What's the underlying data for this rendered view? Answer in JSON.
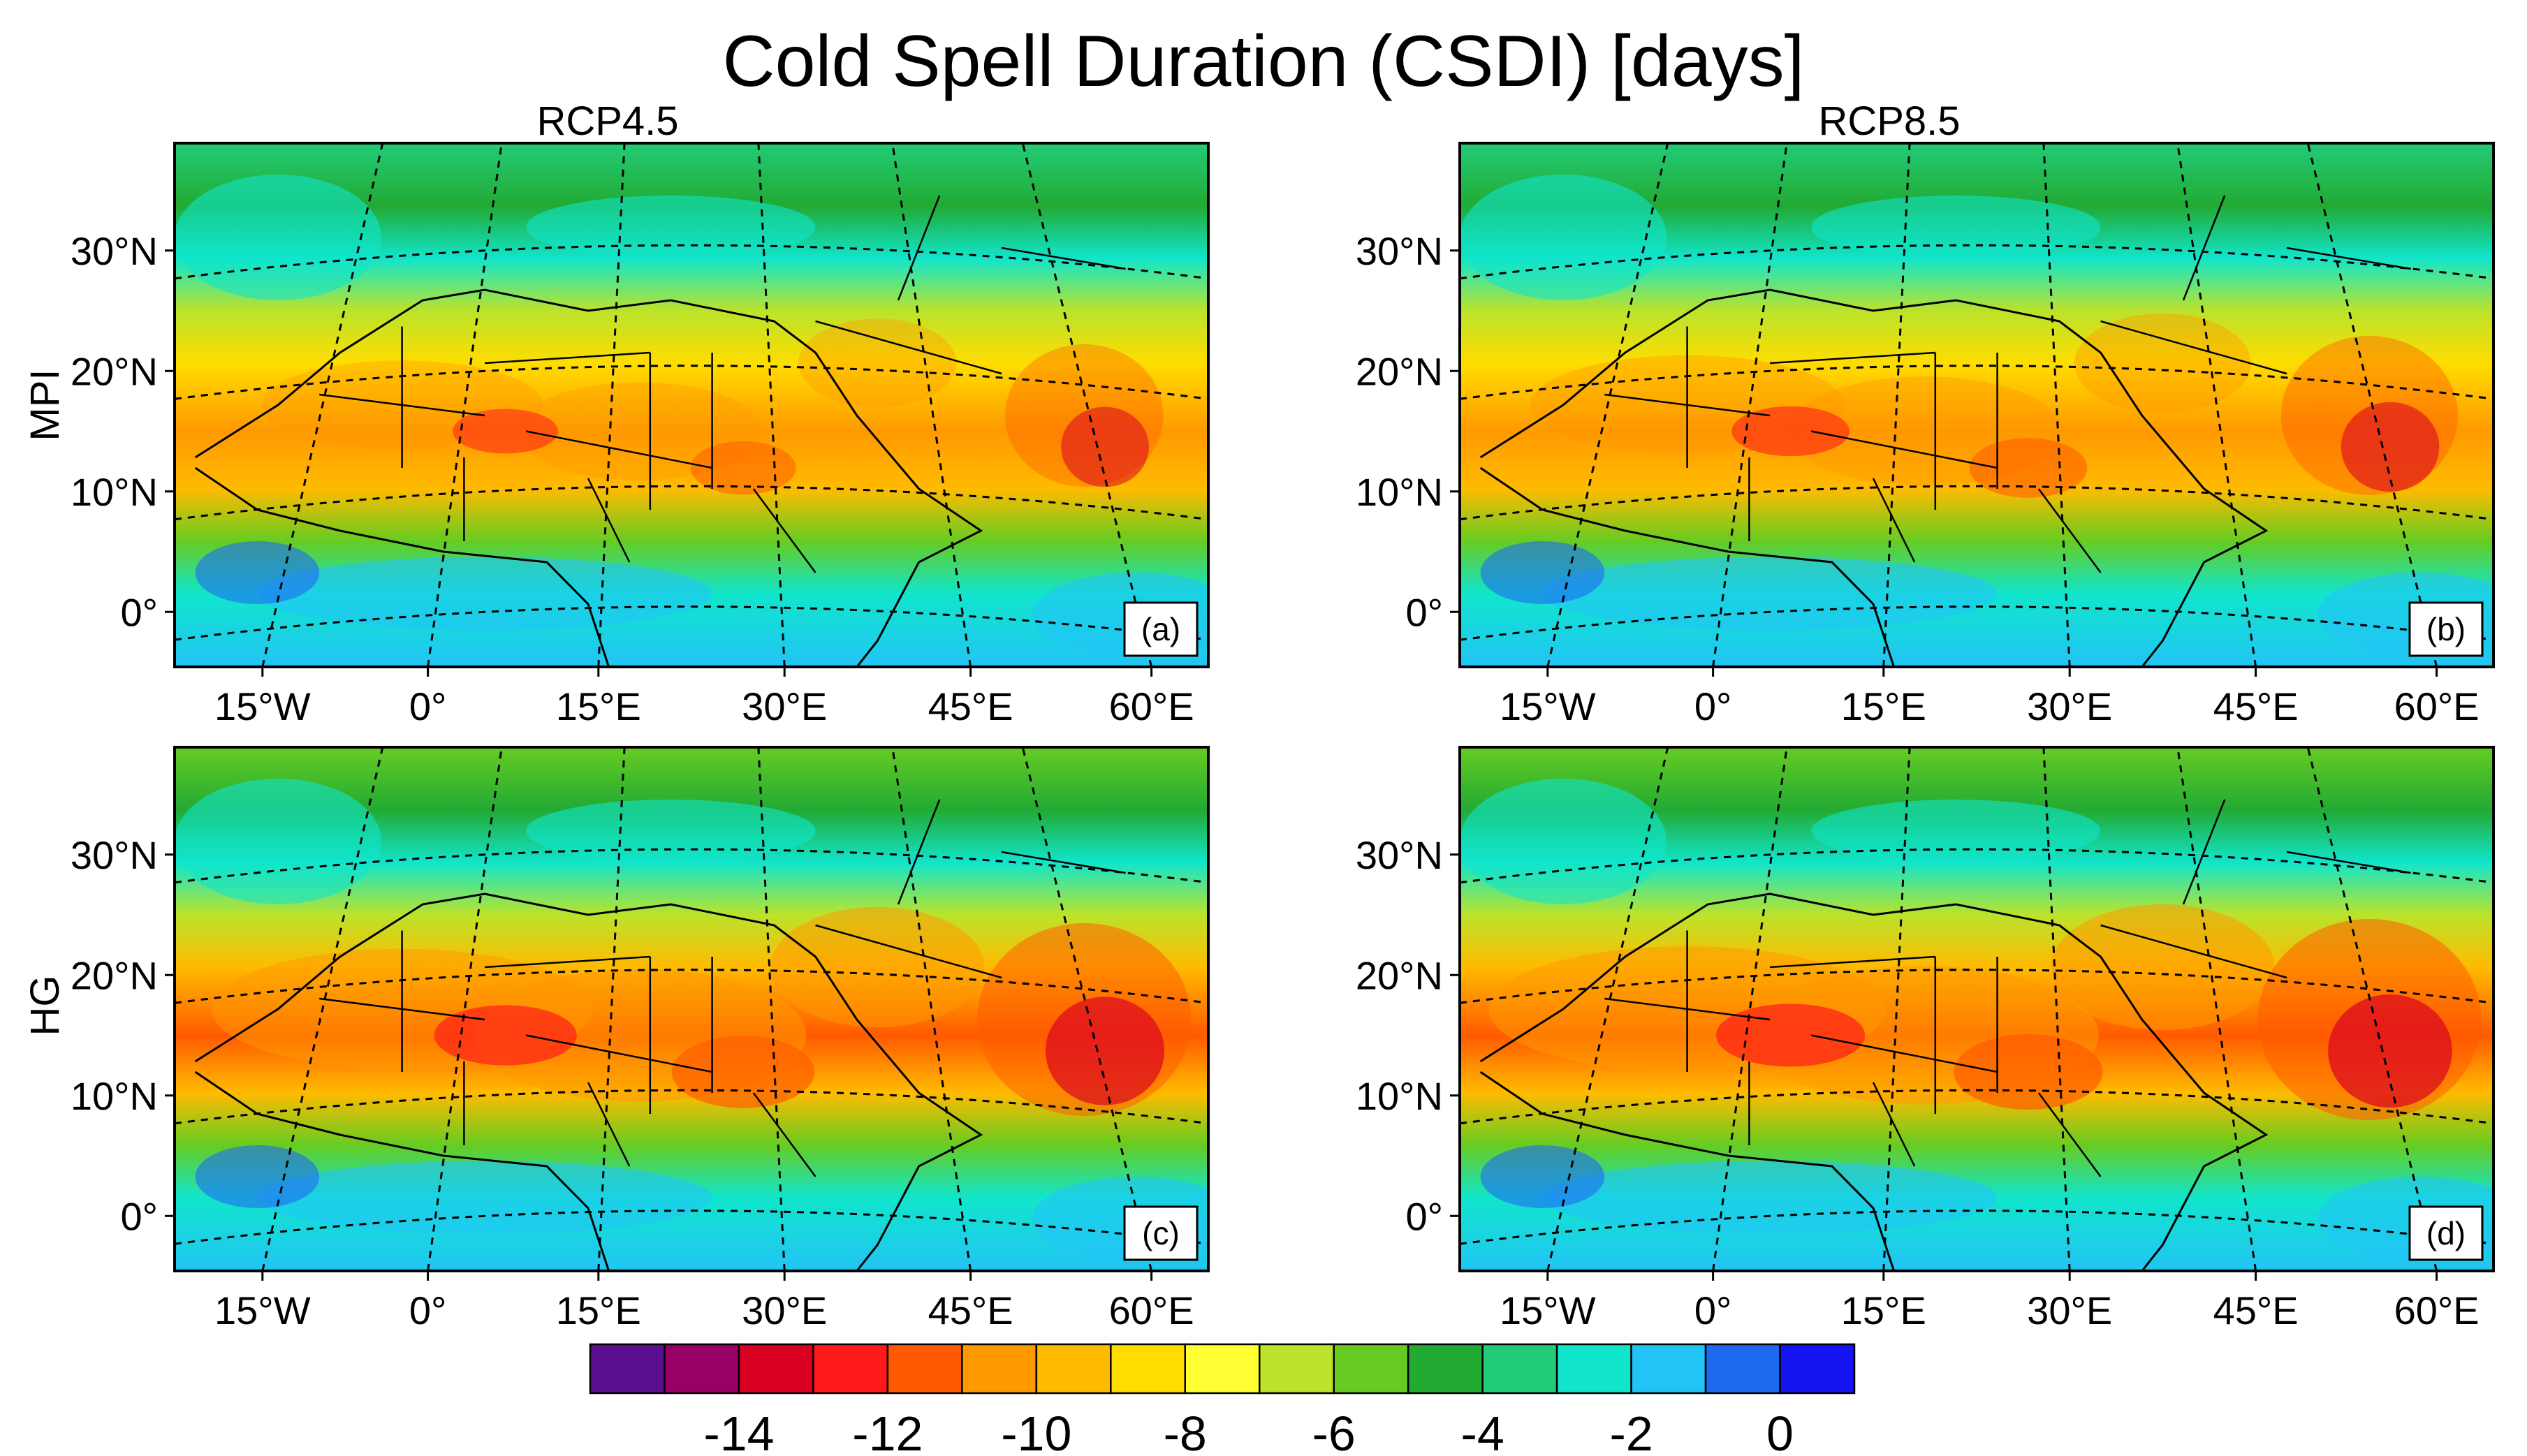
{
  "chart_data": {
    "type": "heatmap",
    "title": "Cold Spell Duration (CSDI) [days]",
    "columns": [
      "RCP4.5",
      "RCP8.5"
    ],
    "rows": [
      "MPI",
      "HG"
    ],
    "lat_ticks": [
      "30°N",
      "20°N",
      "10°N",
      "0°"
    ],
    "lon_ticks": [
      "15°W",
      "0°",
      "15°E",
      "30°E",
      "45°E",
      "60°E"
    ],
    "panels": [
      {
        "label": "(a)",
        "row": "MPI",
        "column": "RCP4.5",
        "intensity": 0.85
      },
      {
        "label": "(b)",
        "row": "MPI",
        "column": "RCP8.5",
        "intensity": 0.95
      },
      {
        "label": "(c)",
        "row": "HG",
        "column": "RCP4.5",
        "intensity": 1.15
      },
      {
        "label": "(d)",
        "row": "HG",
        "column": "RCP8.5",
        "intensity": 1.2
      }
    ],
    "colorbar": {
      "colors": [
        "#5b0f8f",
        "#990066",
        "#d90022",
        "#ff1a1a",
        "#ff5a00",
        "#ff9900",
        "#ffbb00",
        "#ffdd00",
        "#ffff33",
        "#bbe32b",
        "#66cc22",
        "#22aa33",
        "#22cc77",
        "#11e5cc",
        "#22c4f5",
        "#1f6bf0",
        "#1414f0"
      ],
      "tick_values": [
        -14,
        -12,
        -10,
        -8,
        -6,
        -4,
        -2,
        0
      ],
      "tick_labels": [
        "-14",
        "-12",
        "-10",
        "-8",
        "-6",
        "-4",
        "-2",
        "0"
      ]
    }
  }
}
